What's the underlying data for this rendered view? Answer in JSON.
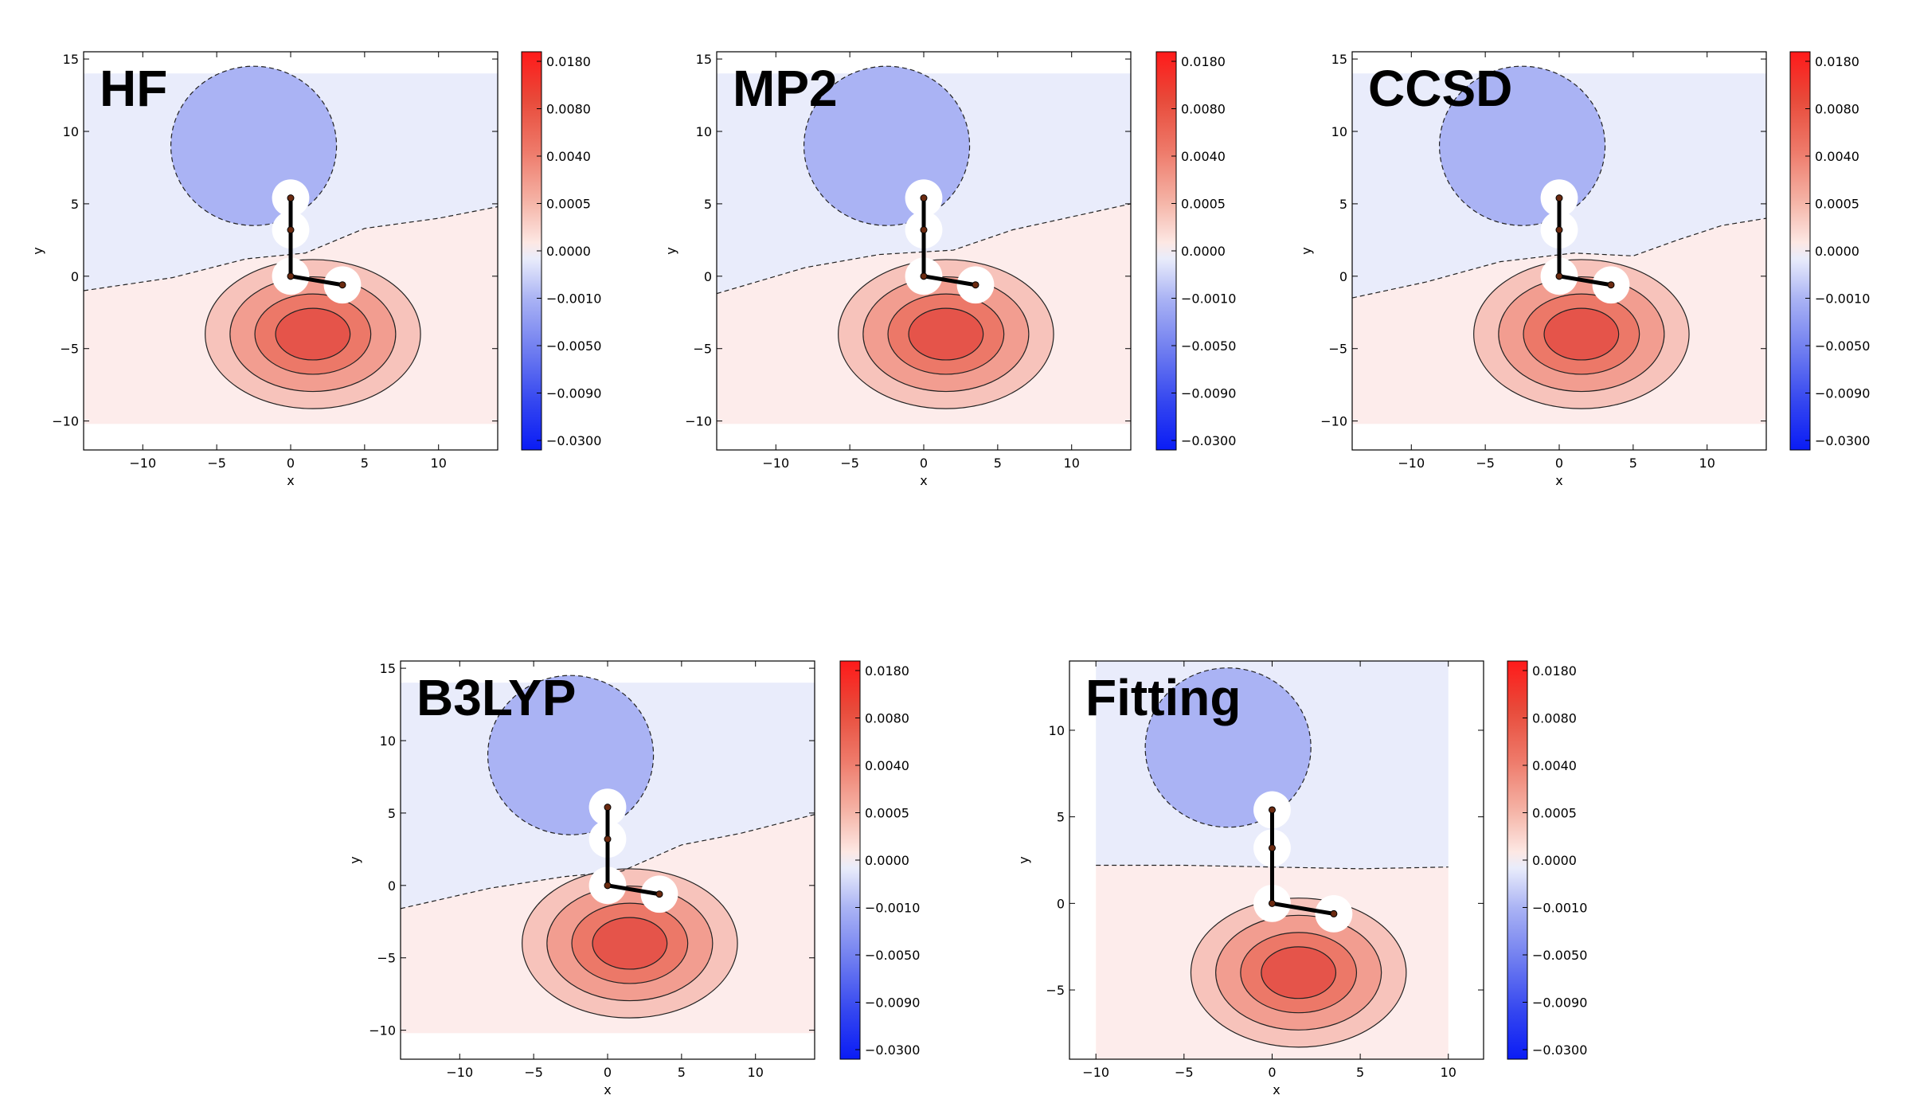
{
  "chart_data": [
    {
      "type": "contour",
      "title": "HF",
      "xlabel": "x",
      "ylabel": "y",
      "xlim": [
        -14,
        14
      ],
      "ylim": [
        -12,
        15.5
      ],
      "xticks": [
        -10,
        -5,
        0,
        5,
        10
      ],
      "yticks": [
        -10,
        -5,
        0,
        5,
        10,
        15
      ],
      "colorbar_ticks": [
        "0.0180",
        "0.0080",
        "0.0040",
        "0.0005",
        "0.0000",
        "−0.0010",
        "−0.0050",
        "−0.0090",
        "−0.0300"
      ],
      "zero_contour": [
        [
          -14,
          -1
        ],
        [
          -8,
          -0.1
        ],
        [
          -3,
          1.2
        ],
        [
          1,
          1.6
        ],
        [
          5,
          3.3
        ],
        [
          10,
          4
        ],
        [
          14,
          4.8
        ]
      ],
      "atoms": [
        [
          0,
          5.4
        ],
        [
          0,
          3.2
        ],
        [
          0,
          0
        ],
        [
          3.5,
          -0.6
        ]
      ]
    },
    {
      "type": "contour",
      "title": "MP2",
      "xlabel": "x",
      "ylabel": "y",
      "xlim": [
        -14,
        14
      ],
      "ylim": [
        -12,
        15.5
      ],
      "xticks": [
        -10,
        -5,
        0,
        5,
        10
      ],
      "yticks": [
        -10,
        -5,
        0,
        5,
        10,
        15
      ],
      "colorbar_ticks": [
        "0.0180",
        "0.0080",
        "0.0040",
        "0.0005",
        "0.0000",
        "−0.0010",
        "−0.0050",
        "−0.0090",
        "−0.0300"
      ],
      "zero_contour": [
        [
          -14,
          -1.2
        ],
        [
          -8,
          0.6
        ],
        [
          -3,
          1.5
        ],
        [
          2,
          1.8
        ],
        [
          6,
          3.2
        ],
        [
          10,
          4.1
        ],
        [
          14,
          5
        ]
      ],
      "atoms": [
        [
          0,
          5.4
        ],
        [
          0,
          3.2
        ],
        [
          0,
          0
        ],
        [
          3.5,
          -0.6
        ]
      ]
    },
    {
      "type": "contour",
      "title": "CCSD",
      "xlabel": "x",
      "ylabel": "y",
      "xlim": [
        -14,
        14
      ],
      "ylim": [
        -12,
        15.5
      ],
      "xticks": [
        -10,
        -5,
        0,
        5,
        10
      ],
      "yticks": [
        -10,
        -5,
        0,
        5,
        10,
        15
      ],
      "colorbar_ticks": [
        "0.0180",
        "0.0080",
        "0.0040",
        "0.0005",
        "0.0000",
        "−0.0010",
        "−0.0050",
        "−0.0090",
        "−0.0300"
      ],
      "zero_contour": [
        [
          -14,
          -1.5
        ],
        [
          -9,
          -0.4
        ],
        [
          -4,
          1
        ],
        [
          1,
          1.6
        ],
        [
          5,
          1.4
        ],
        [
          8,
          2.5
        ],
        [
          11,
          3.5
        ],
        [
          14,
          4
        ]
      ],
      "atoms": [
        [
          0,
          5.4
        ],
        [
          0,
          3.2
        ],
        [
          0,
          0
        ],
        [
          3.5,
          -0.6
        ]
      ]
    },
    {
      "type": "contour",
      "title": "B3LYP",
      "xlabel": "x",
      "ylabel": "y",
      "xlim": [
        -14,
        14
      ],
      "ylim": [
        -12,
        15.5
      ],
      "xticks": [
        -10,
        -5,
        0,
        5,
        10
      ],
      "yticks": [
        -10,
        -5,
        0,
        5,
        10,
        15
      ],
      "colorbar_ticks": [
        "0.0180",
        "0.0080",
        "0.0040",
        "0.0005",
        "0.0000",
        "−0.0010",
        "−0.0050",
        "−0.0090",
        "−0.0300"
      ],
      "zero_contour": [
        [
          -14,
          -1.6
        ],
        [
          -8,
          -0.2
        ],
        [
          -3,
          0.6
        ],
        [
          1,
          1
        ],
        [
          5,
          2.8
        ],
        [
          9,
          3.6
        ],
        [
          14,
          4.9
        ]
      ],
      "atoms": [
        [
          0,
          5.4
        ],
        [
          0,
          3.2
        ],
        [
          0,
          0
        ],
        [
          3.5,
          -0.6
        ]
      ]
    },
    {
      "type": "contour",
      "title": "Fitting",
      "xlabel": "x",
      "ylabel": "y",
      "xlim": [
        -11.5,
        12
      ],
      "ylim": [
        -9,
        14
      ],
      "xticks": [
        -10,
        -5,
        0,
        5,
        10
      ],
      "yticks": [
        -5,
        0,
        5,
        10
      ],
      "colorbar_ticks": [
        "0.0180",
        "0.0080",
        "0.0040",
        "0.0005",
        "0.0000",
        "−0.0010",
        "−0.0050",
        "−0.0090",
        "−0.0300"
      ],
      "zero_contour": [
        [
          -10,
          2.2
        ],
        [
          -5,
          2.2
        ],
        [
          0,
          2.1
        ],
        [
          5,
          2
        ],
        [
          10,
          2.1
        ]
      ],
      "atoms": [
        [
          0,
          5.4
        ],
        [
          0,
          3.2
        ],
        [
          0,
          0
        ],
        [
          3.5,
          -0.6
        ]
      ]
    }
  ]
}
